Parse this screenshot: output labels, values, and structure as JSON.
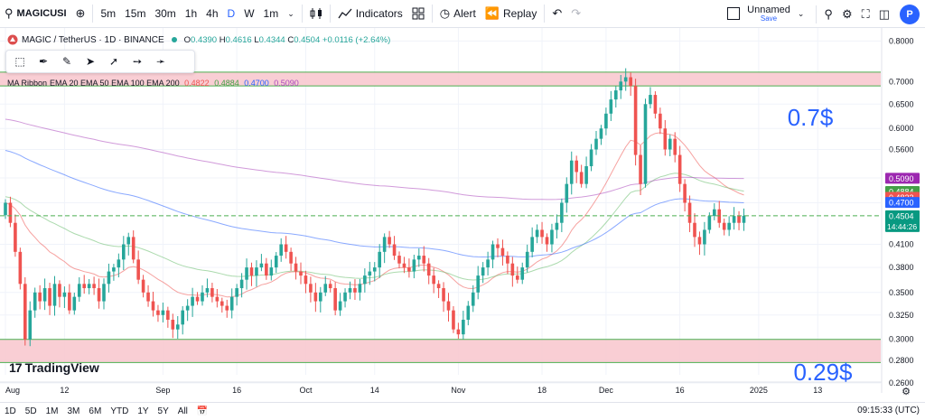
{
  "toolbar": {
    "symbol": "MAGICUSI",
    "intervals": [
      "5m",
      "15m",
      "30m",
      "1h",
      "4h",
      "D",
      "W",
      "1m"
    ],
    "active_interval": "D",
    "indicators_label": "Indicators",
    "alert_label": "Alert",
    "replay_label": "Replay",
    "layout_name": "Unnamed",
    "save_label": "Save",
    "avatar_letter": "P"
  },
  "legend": {
    "title": "MAGIC / TetherUS · 1D · BINANCE",
    "o_label": "O",
    "o": "0.4390",
    "h_label": "H",
    "h": "0.4616",
    "l_label": "L",
    "l": "0.4344",
    "c_label": "C",
    "c": "0.4504",
    "change": "+0.0116 (+2.64%)"
  },
  "ribbon": {
    "label": "MA Ribbon",
    "params": "EMA 20 EMA 50 EMA 100 EMA 200",
    "v20": "0.4822",
    "v50": "0.4884",
    "v100": "0.4700",
    "v200": "0.5090"
  },
  "annotations": {
    "top": "0.7$",
    "bottom": "0.29$"
  },
  "branding": {
    "logo_text": "TradingView"
  },
  "bottom": {
    "ranges": [
      "1D",
      "5D",
      "1M",
      "3M",
      "6M",
      "YTD",
      "1Y",
      "5Y",
      "All"
    ],
    "time": "09:15:33 (UTC)"
  },
  "colors": {
    "up": "#26a69a",
    "down": "#ef5350",
    "ema20": "#ef5350",
    "ema50": "#66bb6a",
    "ema100": "#2962ff",
    "ema200": "#ab47bc",
    "zone": "#f8c9cf",
    "zone_line": "#4caf50",
    "dash": "#4caf50",
    "accent": "#2962ff"
  },
  "chart_data": {
    "type": "candlestick",
    "title": "MAGIC / TetherUS · 1D · BINANCE",
    "y_scale": "log",
    "ylim": [
      0.267,
      0.82
    ],
    "y_ticks": [
      0.8,
      0.7,
      0.65,
      0.6,
      0.56,
      0.51,
      0.47,
      0.41,
      0.38,
      0.35,
      0.325,
      0.3,
      0.28,
      0.26
    ],
    "y_tick_labels": [
      "0.8000",
      "0.7000",
      "0.6500",
      "0.6000",
      "0.5600",
      "0.5100",
      "0.4700",
      "0.4100",
      "0.3800",
      "0.3500",
      "0.3250",
      "0.3000",
      "0.2800",
      "0.2600"
    ],
    "x_labels": [
      {
        "day": 0,
        "label": "Aug"
      },
      {
        "day": 12,
        "label": "12"
      },
      {
        "day": 32,
        "label": "Sep"
      },
      {
        "day": 47,
        "label": "16"
      },
      {
        "day": 61,
        "label": "Oct"
      },
      {
        "day": 75,
        "label": "14"
      },
      {
        "day": 92,
        "label": "Nov"
      },
      {
        "day": 109,
        "label": "18"
      },
      {
        "day": 122,
        "label": "Dec"
      },
      {
        "day": 137,
        "label": "16"
      },
      {
        "day": 153,
        "label": "2025"
      },
      {
        "day": 165,
        "label": "13"
      }
    ],
    "last_day": 151,
    "zones": [
      {
        "from": 0.69,
        "to": 0.722,
        "label": "0.7$"
      },
      {
        "from": 0.278,
        "to": 0.3,
        "label": "0.29$"
      }
    ],
    "current_price": 0.4504,
    "countdown": "14:44:26",
    "price_tags": [
      {
        "value": 0.509,
        "label": "0.5090",
        "color": "#9c27b0"
      },
      {
        "value": 0.4884,
        "label": "0.4884",
        "color": "#43a047"
      },
      {
        "value": 0.4822,
        "label": "0.4822",
        "color": "#ef5350"
      },
      {
        "value": 0.47,
        "label": "0.4700",
        "color": "#2962ff"
      },
      {
        "value": 0.4504,
        "label": "0.4504",
        "color": "#089981"
      }
    ],
    "closes": [
      0.47,
      0.44,
      0.4,
      0.36,
      0.3,
      0.33,
      0.35,
      0.34,
      0.355,
      0.335,
      0.36,
      0.345,
      0.35,
      0.33,
      0.345,
      0.36,
      0.355,
      0.36,
      0.355,
      0.34,
      0.36,
      0.375,
      0.38,
      0.39,
      0.41,
      0.42,
      0.39,
      0.365,
      0.35,
      0.34,
      0.33,
      0.325,
      0.33,
      0.32,
      0.31,
      0.315,
      0.33,
      0.335,
      0.345,
      0.34,
      0.35,
      0.355,
      0.345,
      0.34,
      0.335,
      0.33,
      0.345,
      0.355,
      0.365,
      0.38,
      0.37,
      0.38,
      0.385,
      0.37,
      0.38,
      0.395,
      0.41,
      0.4,
      0.385,
      0.375,
      0.37,
      0.36,
      0.35,
      0.34,
      0.35,
      0.36,
      0.355,
      0.33,
      0.34,
      0.35,
      0.355,
      0.35,
      0.36,
      0.37,
      0.375,
      0.38,
      0.4,
      0.42,
      0.41,
      0.395,
      0.385,
      0.38,
      0.375,
      0.39,
      0.395,
      0.385,
      0.37,
      0.36,
      0.355,
      0.34,
      0.33,
      0.31,
      0.305,
      0.32,
      0.335,
      0.35,
      0.37,
      0.38,
      0.39,
      0.41,
      0.405,
      0.395,
      0.385,
      0.37,
      0.365,
      0.38,
      0.4,
      0.42,
      0.43,
      0.42,
      0.41,
      0.43,
      0.44,
      0.47,
      0.5,
      0.54,
      0.52,
      0.5,
      0.53,
      0.56,
      0.58,
      0.6,
      0.63,
      0.66,
      0.68,
      0.7,
      0.71,
      0.69,
      0.55,
      0.5,
      0.65,
      0.67,
      0.63,
      0.6,
      0.56,
      0.58,
      0.55,
      0.5,
      0.47,
      0.44,
      0.42,
      0.41,
      0.43,
      0.45,
      0.46,
      0.44,
      0.43,
      0.44,
      0.45,
      0.44,
      0.4504
    ],
    "series": [
      {
        "name": "EMA 20",
        "last": 0.4822
      },
      {
        "name": "EMA 50",
        "last": 0.4884
      },
      {
        "name": "EMA 100",
        "last": 0.47
      },
      {
        "name": "EMA 200",
        "last": 0.509
      }
    ]
  }
}
